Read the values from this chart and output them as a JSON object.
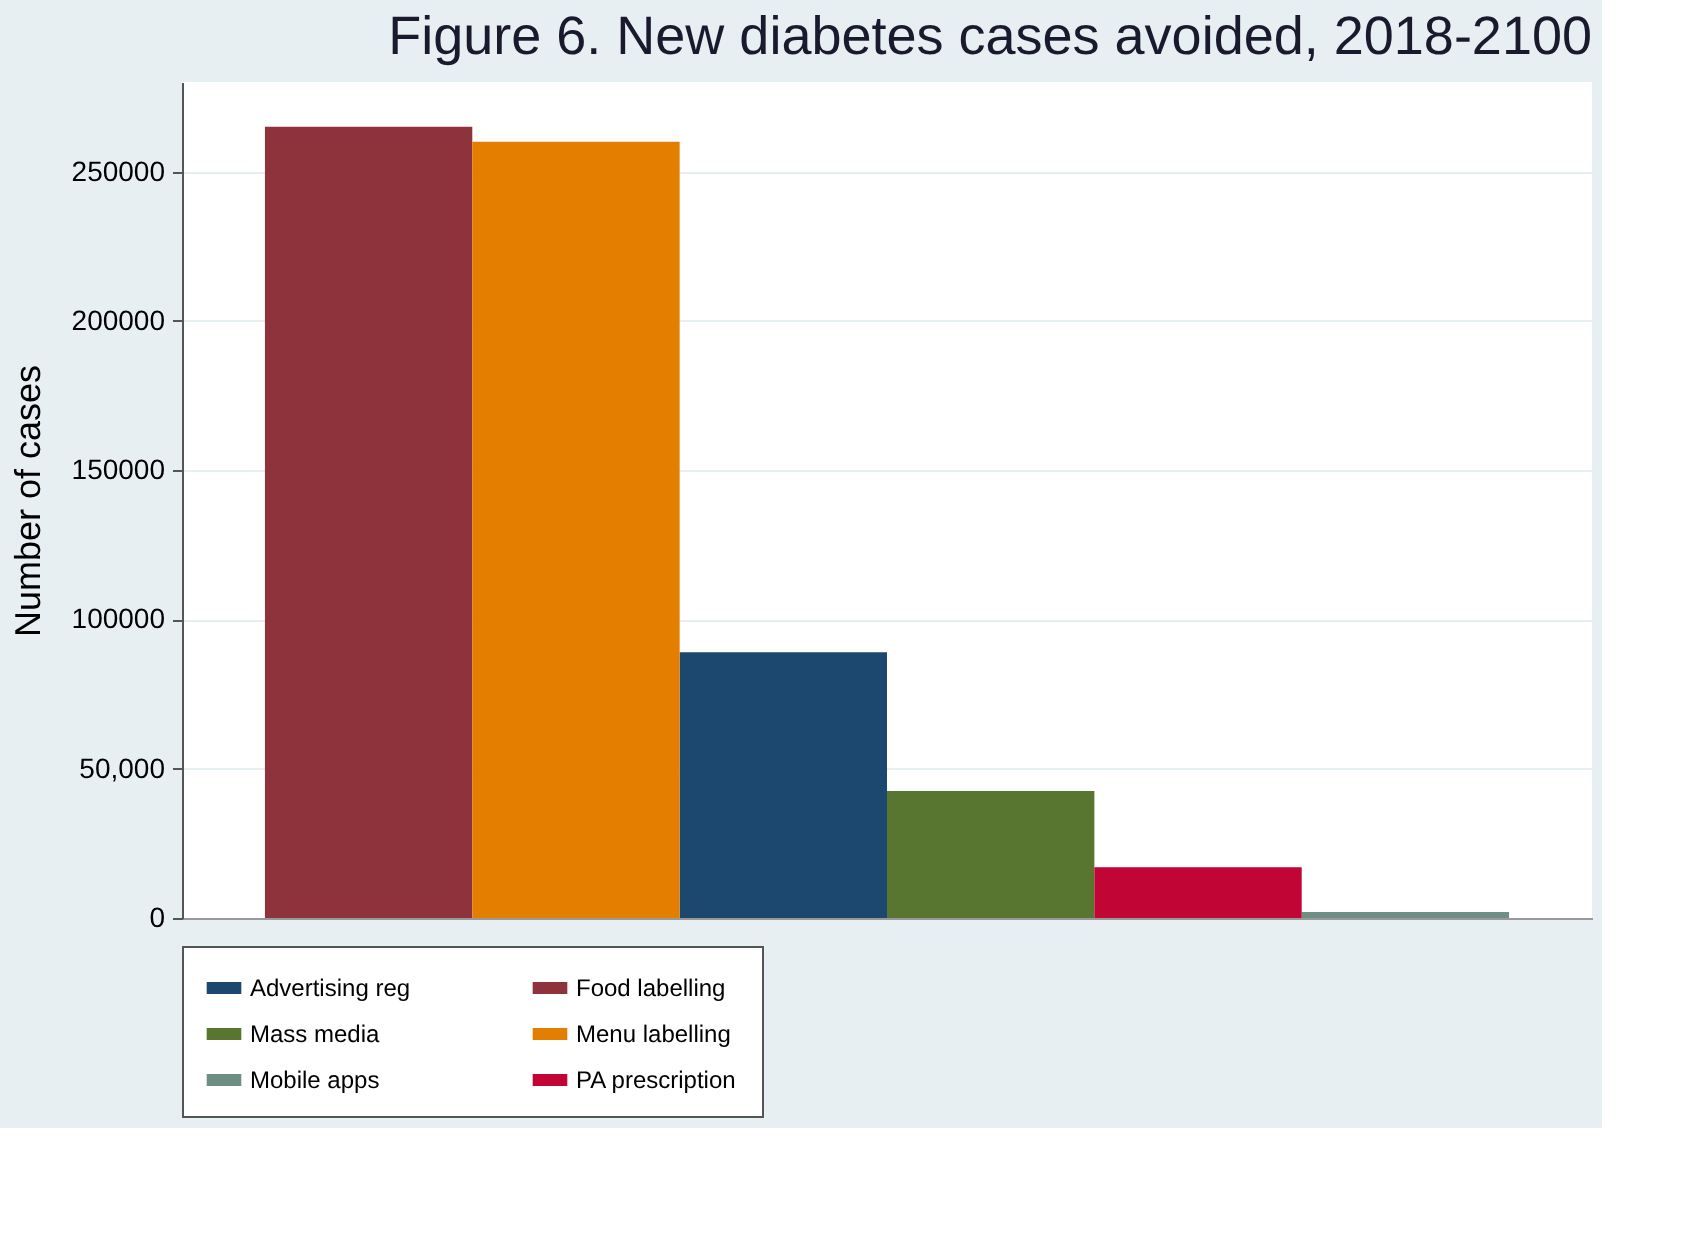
{
  "chart_data": {
    "type": "bar",
    "title": "Figure 6. New diabetes cases avoided, 2018-2100",
    "ylabel": "Number of cases",
    "categories": [
      null,
      null,
      null,
      null,
      null,
      null
    ],
    "series": [
      {
        "name": "Advertising reg",
        "color": "#1c4870",
        "values": [
          null,
          null,
          89000,
          null,
          null,
          null
        ]
      },
      {
        "name": "Food labelling",
        "color": "#8e333c",
        "values": [
          265000,
          null,
          null,
          null,
          null,
          null
        ]
      },
      {
        "name": "Mass media",
        "color": "#58762f",
        "values": [
          null,
          null,
          null,
          42500,
          null,
          null
        ]
      },
      {
        "name": "Menu labelling",
        "color": "#e37e00",
        "values": [
          null,
          260000,
          null,
          null,
          null,
          null
        ]
      },
      {
        "name": "Mobile apps",
        "color": "#6e8e84",
        "values": [
          null,
          null,
          null,
          null,
          null,
          2000
        ]
      },
      {
        "name": "PA prescription",
        "color": "#c10534",
        "values": [
          null,
          null,
          null,
          null,
          17000,
          null
        ]
      }
    ],
    "ylim": [
      0,
      280000
    ],
    "yticks": [
      0,
      {
        "value": 50000,
        "label": "50,000"
      },
      100000,
      150000,
      200000,
      250000
    ],
    "grid": "y",
    "legend": "bottom",
    "tick_labels": "y"
  }
}
